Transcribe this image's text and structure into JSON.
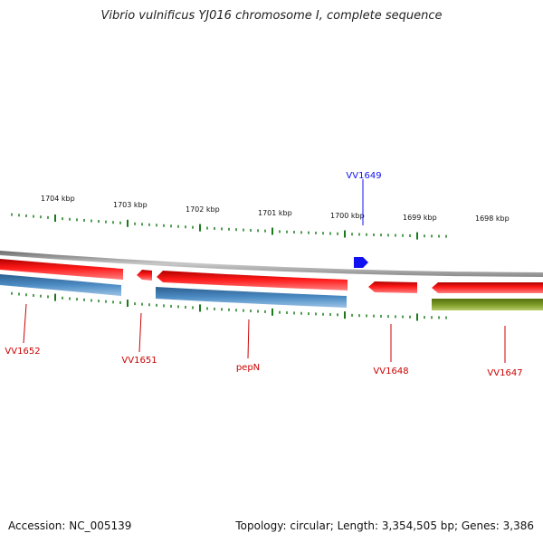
{
  "title": "Vibrio vulnificus YJ016 chromosome I, complete sequence",
  "footer": {
    "accession": "Accession: NC_005139",
    "summary": "Topology: circular; Length: 3,354,505 bp; Genes: 3,386"
  },
  "scale_labels": [
    "1704 kbp",
    "1703 kbp",
    "1702 kbp",
    "1701 kbp",
    "1700 kbp",
    "1699 kbp",
    "1698 kbp"
  ],
  "genes": [
    {
      "name": "VV1652",
      "strand": "reverse",
      "color": "#cc0000"
    },
    {
      "name": "VV1651",
      "strand": "reverse",
      "color": "#cc0000"
    },
    {
      "name": "pepN",
      "strand": "reverse",
      "color": "#cc0000"
    },
    {
      "name": "VV1648",
      "strand": "reverse",
      "color": "#cc0000"
    },
    {
      "name": "VV1647",
      "strand": "reverse",
      "color": "#cc0000"
    },
    {
      "name": "VV1649",
      "strand": "forward",
      "color": "#0000cc"
    }
  ],
  "colors": {
    "cds": "#e81010",
    "blue_feature": "#3f7db5",
    "olive_feature": "#6f8f1d",
    "forward_gene": "#1010f0",
    "ticks": "#1a7a1a",
    "backbone": "#8a8a8a"
  }
}
